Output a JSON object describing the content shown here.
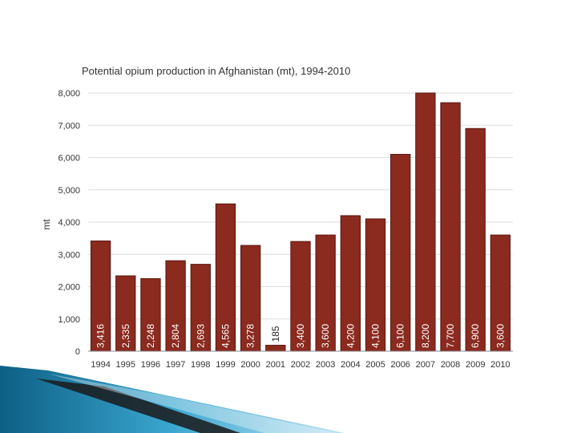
{
  "colors": {
    "bar": "#8b2a1f",
    "bar_stroke": "#5a160f",
    "grid": "#dddddd",
    "axis": "#888888",
    "label_inside": "#ffffff",
    "label_outside": "#222222"
  },
  "chart_data": {
    "type": "bar",
    "title": "Potential opium production in Afghanistan (mt), 1994-2010",
    "ylabel": "mt",
    "xlabel": "",
    "ylim": [
      0,
      8000
    ],
    "yticks": [
      {
        "value": 0,
        "label": "0"
      },
      {
        "value": 1000,
        "label": "1,000"
      },
      {
        "value": 2000,
        "label": "2,000"
      },
      {
        "value": 3000,
        "label": "3,000"
      },
      {
        "value": 4000,
        "label": "4,000"
      },
      {
        "value": 5000,
        "label": "5,000"
      },
      {
        "value": 6000,
        "label": "6,000"
      },
      {
        "value": 7000,
        "label": "7,000"
      },
      {
        "value": 8000,
        "label": "8,000"
      }
    ],
    "grid": true,
    "categories": [
      "1994",
      "1995",
      "1996",
      "1997",
      "1998",
      "1999",
      "2000",
      "2001",
      "2002",
      "2003",
      "2004",
      "2005",
      "2006",
      "2007",
      "2008",
      "2009",
      "2010"
    ],
    "values": [
      3416,
      2335,
      2248,
      2804,
      2693,
      4565,
      3278,
      185,
      3400,
      3600,
      4200,
      4100,
      6100,
      8200,
      7700,
      6900,
      3600
    ],
    "value_labels": [
      "3,416",
      "2,335",
      "2,248",
      "2,804",
      "2,693",
      "4,565",
      "3,278",
      "185",
      "3,400",
      "3,600",
      "4,200",
      "4,100",
      "6,100",
      "8,200",
      "7,700",
      "6,900",
      "3,600"
    ]
  }
}
